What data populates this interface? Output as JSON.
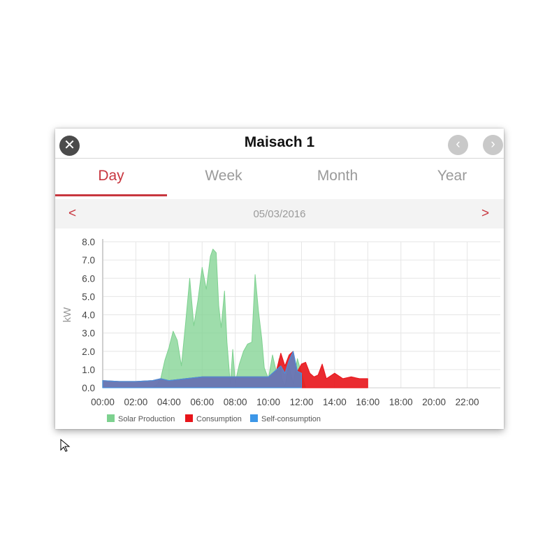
{
  "header": {
    "title": "Maisach 1",
    "close_icon": "close-icon",
    "prev_icon": "chevron-left-icon",
    "next_icon": "chevron-right-icon"
  },
  "tabs": [
    {
      "label": "Day",
      "active": true
    },
    {
      "label": "Week",
      "active": false
    },
    {
      "label": "Month",
      "active": false
    },
    {
      "label": "Year",
      "active": false
    }
  ],
  "date_bar": {
    "date": "05/03/2016",
    "prev": "<",
    "next": ">"
  },
  "colors": {
    "accent": "#c8363f",
    "solar": "#7dd18f",
    "consumption": "#e8141a",
    "self_consumption": "#3d97e8"
  },
  "chart_data": {
    "type": "area",
    "ylabel": "kW",
    "ylim": [
      0,
      8
    ],
    "yticks": [
      "0.0",
      "1.0",
      "2.0",
      "3.0",
      "4.0",
      "5.0",
      "6.0",
      "7.0",
      "8.0"
    ],
    "xticks": [
      "00:00",
      "02:00",
      "04:00",
      "06:00",
      "08:00",
      "10:00",
      "12:00",
      "14:00",
      "16:00",
      "18:00",
      "20:00",
      "22:00"
    ],
    "grid": true,
    "legend_position": "bottom",
    "series": [
      {
        "name": "Solar Production",
        "color": "#7dd18f",
        "points": [
          [
            0,
            0
          ],
          [
            6,
            0
          ],
          [
            6.5,
            0.15
          ],
          [
            7,
            0.5
          ],
          [
            7.5,
            1.5
          ],
          [
            8,
            2.2
          ],
          [
            8.5,
            3.1
          ],
          [
            9,
            2.6
          ],
          [
            9.5,
            1.2
          ],
          [
            10,
            3.5
          ],
          [
            10.5,
            6
          ],
          [
            11,
            3.4
          ],
          [
            11.5,
            4.8
          ],
          [
            12,
            6.6
          ],
          [
            12.5,
            5.4
          ],
          [
            13,
            7.2
          ],
          [
            13.3,
            7.6
          ],
          [
            13.7,
            7.4
          ],
          [
            14,
            4.5
          ],
          [
            14.3,
            3.3
          ],
          [
            14.7,
            5.3
          ],
          [
            15,
            2.5
          ],
          [
            15.4,
            0.2
          ],
          [
            15.7,
            2.1
          ],
          [
            16,
            0.3
          ],
          [
            16.5,
            1.3
          ],
          [
            17,
            2
          ],
          [
            17.5,
            2.4
          ],
          [
            18,
            2.5
          ],
          [
            18.4,
            6.2
          ],
          [
            18.8,
            4.2
          ],
          [
            19.2,
            2.7
          ],
          [
            19.5,
            1.1
          ],
          [
            20,
            0.5
          ],
          [
            20.5,
            1.8
          ],
          [
            21,
            0.8
          ],
          [
            21.3,
            1.6
          ],
          [
            21.6,
            0.5
          ],
          [
            22,
            0.1
          ],
          [
            22.5,
            1.2
          ],
          [
            23,
            0.2
          ],
          [
            23.5,
            1.6
          ],
          [
            24,
            0.8
          ],
          [
            24.5,
            0
          ]
        ]
      },
      {
        "name": "Consumption",
        "color": "#e8141a",
        "points": [
          [
            0,
            0.4
          ],
          [
            2,
            0.35
          ],
          [
            4,
            0.35
          ],
          [
            6,
            0.4
          ],
          [
            7,
            0.5
          ],
          [
            8,
            0.4
          ],
          [
            10,
            0.5
          ],
          [
            12,
            0.6
          ],
          [
            14,
            0.6
          ],
          [
            16,
            0.6
          ],
          [
            18,
            0.6
          ],
          [
            20,
            0.6
          ],
          [
            21,
            1
          ],
          [
            21.5,
            1.9
          ],
          [
            22,
            1.2
          ],
          [
            22.5,
            1.8
          ],
          [
            23,
            2
          ],
          [
            23.5,
            0.9
          ],
          [
            24,
            1.3
          ],
          [
            24.5,
            1.4
          ],
          [
            25,
            0.8
          ],
          [
            25.5,
            0.6
          ],
          [
            26,
            0.7
          ],
          [
            26.5,
            1.3
          ],
          [
            27,
            0.5
          ],
          [
            28,
            0.8
          ],
          [
            29,
            0.5
          ],
          [
            30,
            0.6
          ],
          [
            31,
            0.5
          ],
          [
            32,
            0.5
          ]
        ]
      },
      {
        "name": "Self-consumption",
        "color": "#3d97e8",
        "points": [
          [
            0,
            0.4
          ],
          [
            2,
            0.35
          ],
          [
            4,
            0.35
          ],
          [
            6,
            0.4
          ],
          [
            7,
            0.5
          ],
          [
            8,
            0.4
          ],
          [
            10,
            0.5
          ],
          [
            12,
            0.6
          ],
          [
            14,
            0.6
          ],
          [
            16,
            0.6
          ],
          [
            18,
            0.6
          ],
          [
            20,
            0.6
          ],
          [
            21,
            1
          ],
          [
            21.5,
            1.2
          ],
          [
            22,
            0.8
          ],
          [
            22.5,
            1.5
          ],
          [
            23,
            2
          ],
          [
            23.5,
            0.9
          ],
          [
            24,
            0.8
          ]
        ]
      }
    ],
    "legend": [
      "Solar Production",
      "Consumption",
      "Self-consumption"
    ]
  }
}
